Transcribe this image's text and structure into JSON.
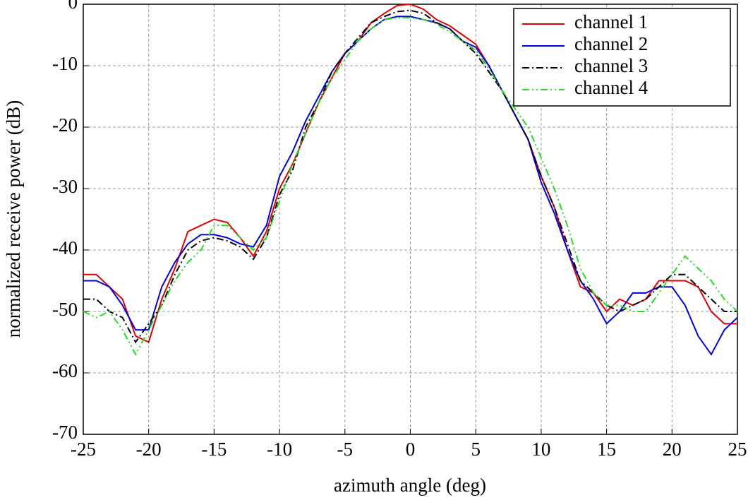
{
  "chart_data": {
    "type": "line",
    "xlabel": "azimuth angle (deg)",
    "ylabel": "normalized receive power (dB)",
    "x": [
      -25,
      -24,
      -23,
      -22,
      -21,
      -20,
      -19,
      -18,
      -17,
      -16,
      -15,
      -14,
      -13,
      -12,
      -11,
      -10,
      -9,
      -8,
      -7,
      -6,
      -5,
      -4,
      -3,
      -2,
      -1,
      0,
      1,
      2,
      3,
      4,
      5,
      6,
      7,
      8,
      9,
      10,
      11,
      12,
      13,
      14,
      15,
      16,
      17,
      18,
      19,
      20,
      21,
      22,
      23,
      24,
      25
    ],
    "series": [
      {
        "name": "channel 1",
        "color": "#e00000",
        "dash": "none",
        "values": [
          -44,
          -44,
          -46,
          -48,
          -54,
          -55,
          -48,
          -43,
          -37,
          -36,
          -35,
          -35.5,
          -38,
          -41,
          -37,
          -30,
          -26,
          -21,
          -16,
          -12,
          -8,
          -6,
          -3,
          -1.5,
          -0.2,
          0,
          -0.8,
          -2.5,
          -3.5,
          -5,
          -6.5,
          -10,
          -14,
          -18,
          -22,
          -28,
          -33,
          -40,
          -46,
          -47,
          -50,
          -48,
          -49,
          -48,
          -45,
          -45,
          -45,
          -46,
          -50,
          -52,
          -52
        ]
      },
      {
        "name": "channel 2",
        "color": "#0000e0",
        "dash": "none",
        "values": [
          -45,
          -45,
          -46,
          -49,
          -53,
          -53,
          -46,
          -42,
          -39,
          -37.5,
          -37.5,
          -38,
          -39,
          -39.5,
          -36,
          -28,
          -24,
          -19,
          -15,
          -11,
          -8,
          -6,
          -4,
          -2.5,
          -2,
          -2,
          -2.5,
          -3,
          -4,
          -6,
          -7,
          -10,
          -14,
          -18,
          -22,
          -29,
          -34,
          -40,
          -45,
          -48,
          -52,
          -50,
          -47,
          -47,
          -46,
          -46,
          -49,
          -54,
          -57,
          -53,
          -51
        ]
      },
      {
        "name": "channel 3",
        "color": "#000000",
        "dash": "10,4,2,4",
        "values": [
          -48,
          -48,
          -50,
          -51,
          -55,
          -52,
          -49,
          -44,
          -40,
          -38.5,
          -38,
          -38.5,
          -39.5,
          -41.5,
          -38,
          -31,
          -27,
          -20,
          -16,
          -11,
          -8,
          -5.5,
          -3,
          -2,
          -1.2,
          -1,
          -1.5,
          -3,
          -4,
          -6,
          -8,
          -11,
          -14,
          -18,
          -22,
          -28,
          -33,
          -39,
          -45,
          -47,
          -49,
          -50,
          -49,
          -48,
          -46,
          -44,
          -44,
          -46,
          -48,
          -50,
          -50
        ]
      },
      {
        "name": "channel 4",
        "color": "#22dd22",
        "dash": "10,4,2,4,2,4",
        "values": [
          -50,
          -51,
          -50,
          -53,
          -57,
          -53,
          -49,
          -45,
          -42,
          -40,
          -36,
          -36,
          -38,
          -40,
          -38,
          -32,
          -26,
          -21,
          -16,
          -12,
          -9,
          -6,
          -4,
          -2.5,
          -2.2,
          -2.2,
          -2.5,
          -3.2,
          -4.5,
          -6,
          -7.5,
          -10.5,
          -14,
          -17,
          -20,
          -25,
          -30,
          -36,
          -43,
          -47,
          -49,
          -49,
          -50,
          -50,
          -47,
          -44,
          -41,
          -43,
          -45,
          -48,
          -50
        ]
      }
    ],
    "xlim": [
      -25,
      25
    ],
    "xticks": [
      -25,
      -20,
      -15,
      -10,
      -5,
      0,
      5,
      10,
      15,
      20,
      25
    ],
    "ylim": [
      -70,
      0
    ],
    "yticks": [
      -70,
      -60,
      -50,
      -40,
      -30,
      -20,
      -10,
      0
    ],
    "grid": true,
    "legend": "upper right"
  }
}
